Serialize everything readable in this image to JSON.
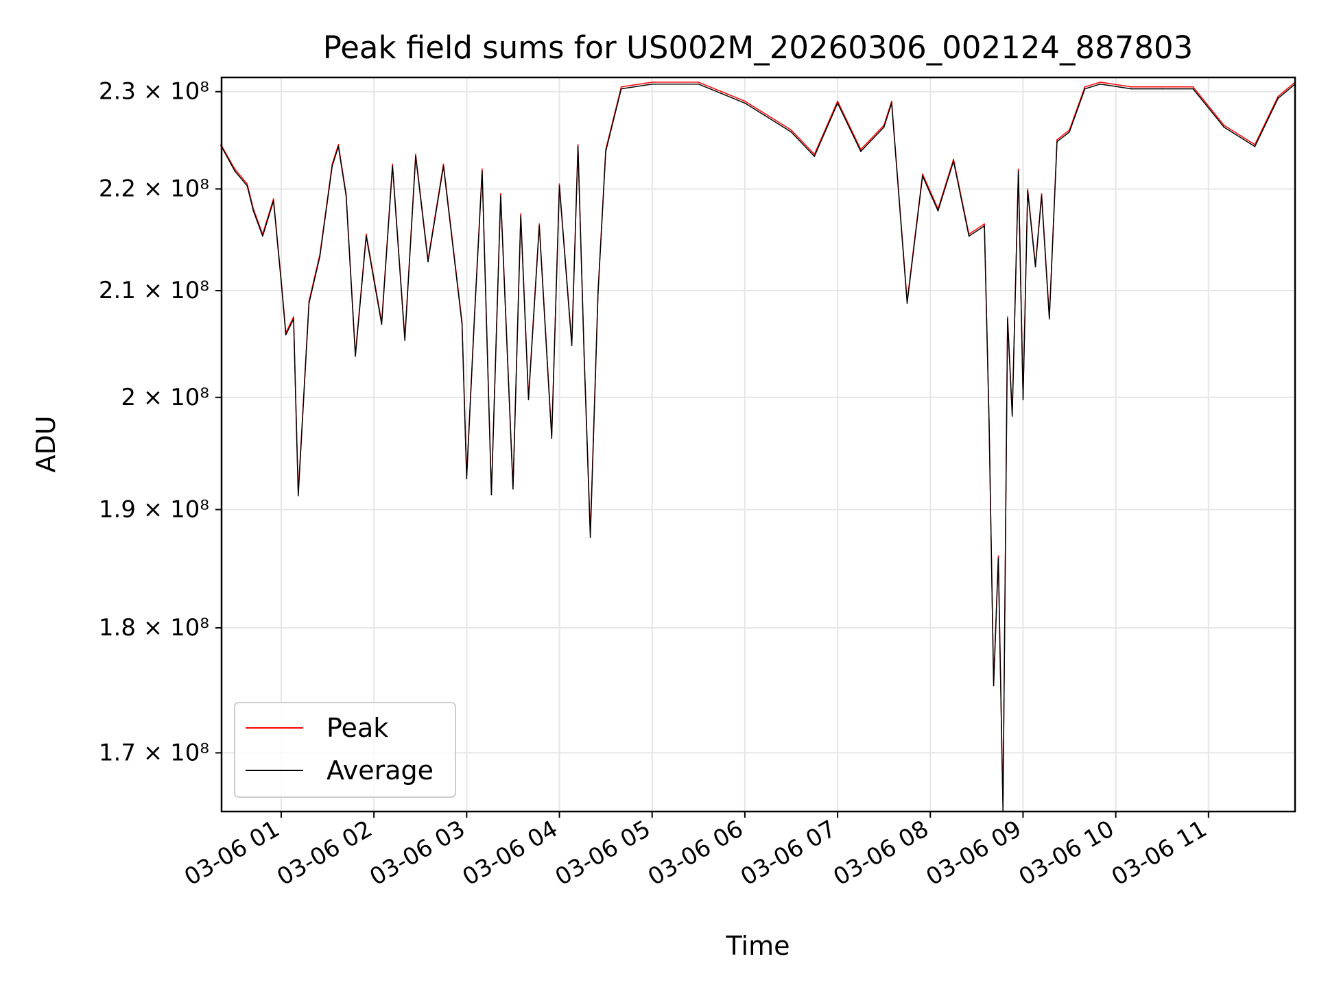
{
  "chart_data": {
    "type": "line",
    "title": "Peak field sums for US002M_20260306_002124_887803",
    "xlabel": "Time",
    "ylabel": "ADU",
    "y_scale": "log",
    "xlim": [
      "2026-03-06 00:21:24",
      "2026-03-06 11:56:00"
    ],
    "ylim": [
      165500000,
      231500000
    ],
    "grid": true,
    "legend_position": "lower-left",
    "x_ticks": [
      {
        "t": "2026-03-06 01:00",
        "label": "03-06 01"
      },
      {
        "t": "2026-03-06 02:00",
        "label": "03-06 02"
      },
      {
        "t": "2026-03-06 03:00",
        "label": "03-06 03"
      },
      {
        "t": "2026-03-06 04:00",
        "label": "03-06 04"
      },
      {
        "t": "2026-03-06 05:00",
        "label": "03-06 05"
      },
      {
        "t": "2026-03-06 06:00",
        "label": "03-06 06"
      },
      {
        "t": "2026-03-06 07:00",
        "label": "03-06 07"
      },
      {
        "t": "2026-03-06 08:00",
        "label": "03-06 08"
      },
      {
        "t": "2026-03-06 09:00",
        "label": "03-06 09"
      },
      {
        "t": "2026-03-06 10:00",
        "label": "03-06 10"
      },
      {
        "t": "2026-03-06 11:00",
        "label": "03-06 11"
      }
    ],
    "y_ticks": [
      {
        "v": 170000000,
        "label": "1.7 × 10⁸"
      },
      {
        "v": 180000000,
        "label": "1.8 × 10⁸"
      },
      {
        "v": 190000000,
        "label": "1.9 × 10⁸"
      },
      {
        "v": 200000000,
        "label": "2 × 10⁸"
      },
      {
        "v": 210000000,
        "label": "2.1 × 10⁸"
      },
      {
        "v": 220000000,
        "label": "2.2 × 10⁸"
      },
      {
        "v": 230000000,
        "label": "2.3 × 10⁸"
      }
    ],
    "series": [
      {
        "name": "Peak",
        "color": "#ff0000",
        "x": [
          "2026-03-06 00:21",
          "2026-03-06 00:30",
          "2026-03-06 00:38",
          "2026-03-06 00:42",
          "2026-03-06 00:48",
          "2026-03-06 00:55",
          "2026-03-06 01:00",
          "2026-03-06 01:03",
          "2026-03-06 01:08",
          "2026-03-06 01:11",
          "2026-03-06 01:18",
          "2026-03-06 01:25",
          "2026-03-06 01:33",
          "2026-03-06 01:37",
          "2026-03-06 01:42",
          "2026-03-06 01:48",
          "2026-03-06 01:55",
          "2026-03-06 02:05",
          "2026-03-06 02:12",
          "2026-03-06 02:20",
          "2026-03-06 02:27",
          "2026-03-06 02:35",
          "2026-03-06 02:45",
          "2026-03-06 02:57",
          "2026-03-06 03:00",
          "2026-03-06 03:05",
          "2026-03-06 03:10",
          "2026-03-06 03:16",
          "2026-03-06 03:22",
          "2026-03-06 03:30",
          "2026-03-06 03:35",
          "2026-03-06 03:40",
          "2026-03-06 03:47",
          "2026-03-06 03:55",
          "2026-03-06 04:00",
          "2026-03-06 04:08",
          "2026-03-06 04:12",
          "2026-03-06 04:16",
          "2026-03-06 04:20",
          "2026-03-06 04:25",
          "2026-03-06 04:30",
          "2026-03-06 04:40",
          "2026-03-06 05:00",
          "2026-03-06 05:30",
          "2026-03-06 06:00",
          "2026-03-06 06:30",
          "2026-03-06 06:45",
          "2026-03-06 07:00",
          "2026-03-06 07:15",
          "2026-03-06 07:30",
          "2026-03-06 07:35",
          "2026-03-06 07:45",
          "2026-03-06 07:55",
          "2026-03-06 08:05",
          "2026-03-06 08:15",
          "2026-03-06 08:25",
          "2026-03-06 08:35",
          "2026-03-06 08:38",
          "2026-03-06 08:41",
          "2026-03-06 08:44",
          "2026-03-06 08:47",
          "2026-03-06 08:50",
          "2026-03-06 08:53",
          "2026-03-06 08:57",
          "2026-03-06 09:00",
          "2026-03-06 09:03",
          "2026-03-06 09:08",
          "2026-03-06 09:12",
          "2026-03-06 09:17",
          "2026-03-06 09:22",
          "2026-03-06 09:30",
          "2026-03-06 09:40",
          "2026-03-06 09:50",
          "2026-03-06 10:10",
          "2026-03-06 10:30",
          "2026-03-06 10:50",
          "2026-03-06 11:10",
          "2026-03-06 11:30",
          "2026-03-06 11:45",
          "2026-03-06 11:56"
        ],
        "values": [
          224500000,
          222000000,
          220500000,
          218000000,
          215500000,
          219000000,
          211000000,
          206000000,
          207500000,
          191500000,
          209000000,
          213500000,
          222500000,
          224500000,
          219500000,
          204000000,
          215500000,
          207000000,
          222500000,
          205500000,
          223500000,
          213000000,
          222500000,
          207000000,
          193000000,
          207500000,
          222000000,
          191500000,
          219500000,
          192000000,
          217500000,
          200000000,
          216500000,
          196500000,
          220500000,
          205000000,
          224500000,
          204000000,
          188000000,
          210000000,
          224000000,
          230500000,
          231000000,
          231000000,
          229000000,
          226000000,
          223500000,
          229000000,
          224000000,
          226500000,
          229000000,
          209000000,
          221500000,
          218000000,
          223000000,
          215500000,
          216500000,
          198000000,
          175500000,
          186000000,
          166000000,
          207500000,
          198500000,
          222000000,
          200000000,
          220000000,
          212500000,
          219500000,
          207500000,
          225000000,
          226000000,
          230500000,
          231000000,
          230500000,
          230500000,
          230500000,
          226500000,
          224500000,
          229500000,
          231000000
        ]
      },
      {
        "name": "Average",
        "color": "#000000",
        "x": [
          "2026-03-06 00:21",
          "2026-03-06 00:30",
          "2026-03-06 00:38",
          "2026-03-06 00:42",
          "2026-03-06 00:48",
          "2026-03-06 00:55",
          "2026-03-06 01:00",
          "2026-03-06 01:03",
          "2026-03-06 01:08",
          "2026-03-06 01:11",
          "2026-03-06 01:18",
          "2026-03-06 01:25",
          "2026-03-06 01:33",
          "2026-03-06 01:37",
          "2026-03-06 01:42",
          "2026-03-06 01:48",
          "2026-03-06 01:55",
          "2026-03-06 02:05",
          "2026-03-06 02:12",
          "2026-03-06 02:20",
          "2026-03-06 02:27",
          "2026-03-06 02:35",
          "2026-03-06 02:45",
          "2026-03-06 02:57",
          "2026-03-06 03:00",
          "2026-03-06 03:05",
          "2026-03-06 03:10",
          "2026-03-06 03:16",
          "2026-03-06 03:22",
          "2026-03-06 03:30",
          "2026-03-06 03:35",
          "2026-03-06 03:40",
          "2026-03-06 03:47",
          "2026-03-06 03:55",
          "2026-03-06 04:00",
          "2026-03-06 04:08",
          "2026-03-06 04:12",
          "2026-03-06 04:16",
          "2026-03-06 04:20",
          "2026-03-06 04:25",
          "2026-03-06 04:30",
          "2026-03-06 04:40",
          "2026-03-06 05:00",
          "2026-03-06 05:30",
          "2026-03-06 06:00",
          "2026-03-06 06:30",
          "2026-03-06 06:45",
          "2026-03-06 07:00",
          "2026-03-06 07:15",
          "2026-03-06 07:30",
          "2026-03-06 07:35",
          "2026-03-06 07:45",
          "2026-03-06 07:55",
          "2026-03-06 08:05",
          "2026-03-06 08:15",
          "2026-03-06 08:25",
          "2026-03-06 08:35",
          "2026-03-06 08:38",
          "2026-03-06 08:41",
          "2026-03-06 08:44",
          "2026-03-06 08:47",
          "2026-03-06 08:50",
          "2026-03-06 08:53",
          "2026-03-06 08:57",
          "2026-03-06 09:00",
          "2026-03-06 09:03",
          "2026-03-06 09:08",
          "2026-03-06 09:12",
          "2026-03-06 09:17",
          "2026-03-06 09:22",
          "2026-03-06 09:30",
          "2026-03-06 09:40",
          "2026-03-06 09:50",
          "2026-03-06 10:10",
          "2026-03-06 10:30",
          "2026-03-06 10:50",
          "2026-03-06 11:10",
          "2026-03-06 11:30",
          "2026-03-06 11:45",
          "2026-03-06 11:56"
        ],
        "values": [
          224400000,
          221800000,
          220300000,
          217800000,
          215300000,
          218800000,
          210800000,
          205800000,
          207300000,
          191200000,
          208800000,
          213300000,
          222300000,
          224300000,
          219300000,
          203800000,
          215300000,
          206800000,
          222300000,
          205300000,
          223300000,
          212800000,
          222300000,
          206800000,
          192700000,
          207300000,
          221800000,
          191300000,
          219300000,
          191800000,
          217300000,
          199800000,
          216300000,
          196300000,
          220300000,
          204800000,
          224300000,
          203800000,
          187600000,
          209800000,
          223800000,
          230300000,
          230800000,
          230800000,
          228800000,
          225800000,
          223300000,
          228800000,
          223800000,
          226300000,
          228800000,
          208800000,
          221300000,
          217800000,
          222800000,
          215300000,
          216300000,
          197800000,
          175300000,
          185800000,
          165600000,
          207300000,
          198300000,
          221800000,
          199800000,
          219800000,
          212300000,
          219300000,
          207300000,
          224800000,
          225800000,
          230300000,
          230800000,
          230300000,
          230300000,
          230300000,
          226300000,
          224300000,
          229300000,
          230800000
        ]
      }
    ]
  }
}
